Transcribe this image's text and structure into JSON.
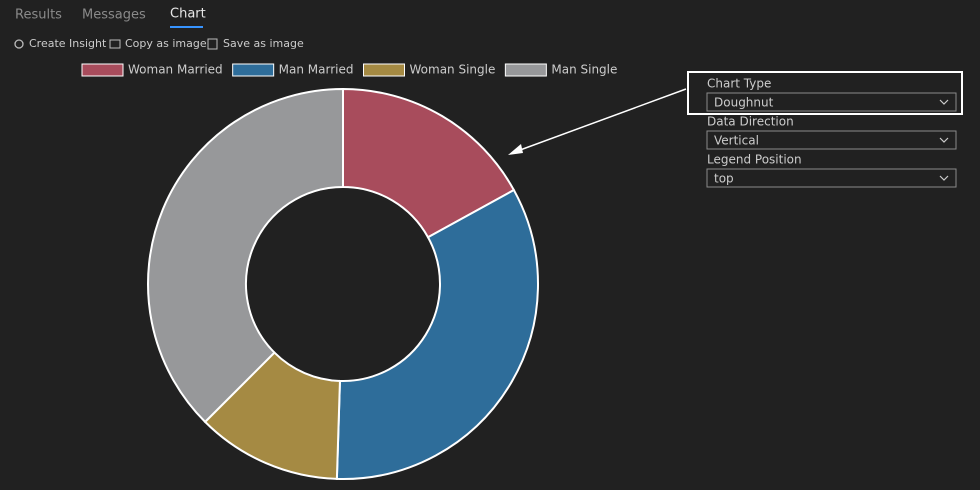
{
  "tabs": [
    "Results",
    "Messages",
    "Chart"
  ],
  "toolbar": [
    "Create Insight",
    "Copy as image",
    "Save as image"
  ],
  "chart_data": {
    "type": "doughnut",
    "categories": [
      "Woman Married",
      "Man Married",
      "Woman Single",
      "Man Single"
    ],
    "values": [
      17,
      33.5,
      12,
      37.5
    ],
    "colors": [
      "#a84c5c",
      "#2e6d9a",
      "#a58a43",
      "#97989a"
    ],
    "legend_position": "top"
  },
  "settings": [
    {
      "label": "Chart Type",
      "value": "Doughnut"
    },
    {
      "label": "Data Direction",
      "value": "Vertical"
    },
    {
      "label": "Legend Position",
      "value": "top"
    }
  ]
}
